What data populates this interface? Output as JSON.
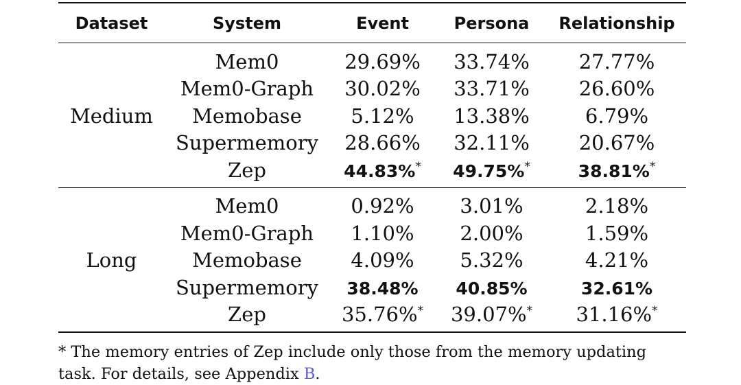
{
  "headers": [
    "Dataset",
    "System",
    "Event",
    "Persona",
    "Relationship"
  ],
  "groups": [
    {
      "name": "Medium",
      "rows": [
        {
          "system": "Mem0",
          "event": "29.69%",
          "persona": "33.74%",
          "relationship": "27.77%"
        },
        {
          "system": "Mem0-Graph",
          "event": "30.02%",
          "persona": "33.71%",
          "relationship": "26.60%"
        },
        {
          "system": "Memobase",
          "event": "5.12%",
          "persona": "13.38%",
          "relationship": "6.79%"
        },
        {
          "system": "Supermemory",
          "event": "28.66%",
          "persona": "32.11%",
          "relationship": "20.67%"
        },
        {
          "system": "Zep",
          "event": "44.83%",
          "persona": "49.75%",
          "relationship": "38.81%"
        }
      ]
    },
    {
      "name": "Long",
      "rows": [
        {
          "system": "Mem0",
          "event": "0.92%",
          "persona": "3.01%",
          "relationship": "2.18%"
        },
        {
          "system": "Mem0-Graph",
          "event": "1.10%",
          "persona": "2.00%",
          "relationship": "1.59%"
        },
        {
          "system": "Memobase",
          "event": "4.09%",
          "persona": "5.32%",
          "relationship": "4.21%"
        },
        {
          "system": "Supermemory",
          "event": "38.48%",
          "persona": "40.85%",
          "relationship": "32.61%"
        },
        {
          "system": "Zep",
          "event": "35.76%",
          "persona": "39.07%",
          "relationship": "31.16%"
        }
      ]
    }
  ],
  "star": "*",
  "footnote": {
    "text": "* The memory entries of Zep include only those from the memory updating task. For details, see Appendix ",
    "link": "B",
    "end": "."
  }
}
